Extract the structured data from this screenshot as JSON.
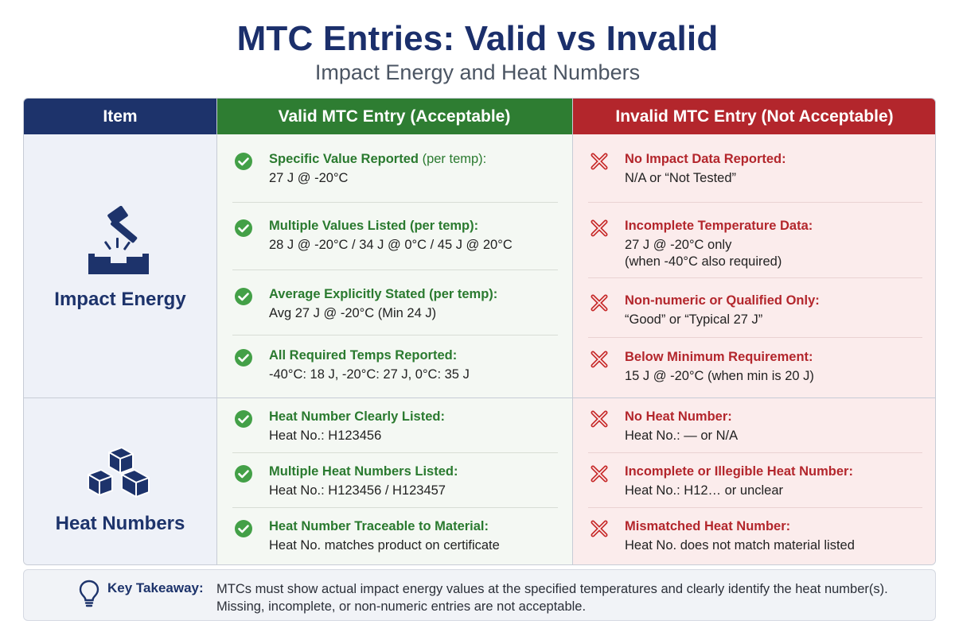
{
  "title": "MTC Entries: Valid vs Invalid",
  "subtitle": "Impact Energy and Heat Numbers",
  "table": {
    "headers": {
      "item": "Item",
      "valid": "Valid MTC Entry (Acceptable)",
      "invalid": "Invalid MTC Entry (Not Acceptable)"
    },
    "items": [
      {
        "label": "Impact Energy",
        "icon": "hammer-impact-icon"
      },
      {
        "label": "Heat Numbers",
        "icon": "stacked-blocks-icon"
      }
    ],
    "valid": [
      {
        "head": "Specific Value Reported",
        "qualifier": " (per temp):",
        "detail": "27 J @ -20°C"
      },
      {
        "head": "Multiple Values Listed (per temp):",
        "qualifier": "",
        "detail": "28 J @ -20°C / 34 J @ 0°C / 45 J @ 20°C"
      },
      {
        "head": "Average Explicitly Stated (per temp):",
        "qualifier": "",
        "detail": "Avg 27 J @ -20°C (Min 24 J)"
      },
      {
        "head": "All Required Temps Reported:",
        "qualifier": "",
        "detail": "-40°C: 18 J, -20°C: 27 J, 0°C: 35 J"
      },
      {
        "head": "Heat Number Clearly Listed:",
        "qualifier": "",
        "detail": "Heat No.: H123456"
      },
      {
        "head": "Multiple Heat Numbers Listed:",
        "qualifier": "",
        "detail": "Heat No.: H123456 / H123457"
      },
      {
        "head": "Heat Number Traceable to Material:",
        "qualifier": "",
        "detail": "Heat No. matches product on certificate"
      }
    ],
    "invalid": [
      {
        "head": "No Impact Data Reported:",
        "detail": "N/A or “Not Tested”",
        "detail2": ""
      },
      {
        "head": "Incomplete Temperature Data:",
        "detail": "27 J @ -20°C only",
        "detail2": "(when -40°C also required)"
      },
      {
        "head": "Non-numeric or Qualified Only:",
        "detail": "“Good” or “Typical 27 J”",
        "detail2": ""
      },
      {
        "head": "Below Minimum Requirement:",
        "detail": "15 J @ -20°C (when min is 20 J)",
        "detail2": ""
      },
      {
        "head": "No Heat Number:",
        "detail": "Heat No.: — or N/A",
        "detail2": ""
      },
      {
        "head": "Incomplete or Illegible Heat Number:",
        "detail": "Heat No.: H12… or unclear",
        "detail2": ""
      },
      {
        "head": "Mismatched Heat Number:",
        "detail": "Heat No. does not match material listed",
        "detail2": ""
      }
    ]
  },
  "takeaway": {
    "label": "Key Takeaway:",
    "text": "MTCs must show actual impact energy values at the specified temperatures and clearly identify the heat number(s). Missing, incomplete, or non-numeric entries are not acceptable."
  },
  "colors": {
    "navy": "#1d336b",
    "green": "#2e7d32",
    "red": "#b3262c"
  }
}
